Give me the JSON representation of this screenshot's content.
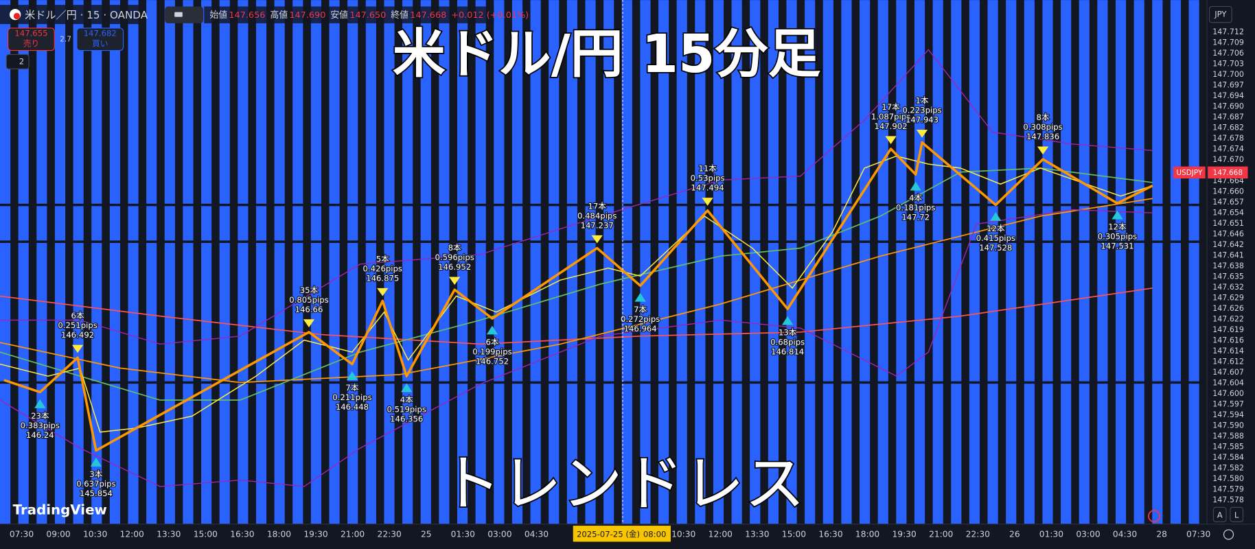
{
  "toolbar": {
    "symbol": "米ドル／円 · 15 · OANDA",
    "ohlc": [
      {
        "label": "始値",
        "value": "147.656"
      },
      {
        "label": "高値",
        "value": "147.690"
      },
      {
        "label": "安値",
        "value": "147.650"
      },
      {
        "label": "終値",
        "value": "147.668"
      }
    ],
    "change": "+0.012 (+0.01%)"
  },
  "trade": {
    "sell_price": "147.655",
    "sell_label": "売り",
    "spread": "2.7",
    "buy_price": "147.682",
    "buy_label": "買い"
  },
  "indicator_count": "2",
  "overlay_title": "米ドル/円 15分足",
  "overlay_subtitle": "トレンドレス",
  "pivots": [
    {
      "bars": "23本",
      "pips": "0.383pips",
      "price": "146.24"
    },
    {
      "bars": "6本",
      "pips": "0.251pips",
      "price": "146.492"
    },
    {
      "bars": "3本",
      "pips": "0.637pips",
      "price": "145.854"
    },
    {
      "bars": "35本",
      "pips": "0.805pips",
      "price": "146.66"
    },
    {
      "bars": "7本",
      "pips": "0.211pips",
      "price": "146.448"
    },
    {
      "bars": "5本",
      "pips": "0.426pips",
      "price": "146.875"
    },
    {
      "bars": "4本",
      "pips": "0.519pips",
      "price": "146.356"
    },
    {
      "bars": "8本",
      "pips": "0.596pips",
      "price": "146.952"
    },
    {
      "bars": "6本",
      "pips": "0.199pips",
      "price": "146.752"
    },
    {
      "bars": "17本",
      "pips": "0.484pips",
      "price": "147.237"
    },
    {
      "bars": "7本",
      "pips": "0.272pips",
      "price": "146.964"
    },
    {
      "bars": "11本",
      "pips": "0.53pips",
      "price": "147.494"
    },
    {
      "bars": "13本",
      "pips": "0.68pips",
      "price": "146.814"
    },
    {
      "bars": "17本",
      "pips": "1.087pips",
      "price": "147.902"
    },
    {
      "bars": "4本",
      "pips": "0.181pips",
      "price": "147.72"
    },
    {
      "bars": "1本",
      "pips": "0.223pips",
      "price": "147.943"
    },
    {
      "bars": "12本",
      "pips": "0.415pips",
      "price": "147.528"
    },
    {
      "bars": "8本",
      "pips": "0.308pips",
      "price": "147.836"
    },
    {
      "bars": "12本",
      "pips": "0.305pips",
      "price": "147.531"
    }
  ],
  "price_axis": {
    "currency": "JPY",
    "symbol_tag": "USDJPY",
    "last_price": "147.668",
    "labels": [
      "147.712",
      "147.709",
      "147.706",
      "147.703",
      "147.700",
      "147.697",
      "147.694",
      "147.690",
      "147.687",
      "147.682",
      "147.678",
      "147.674",
      "147.670",
      "147.668",
      "147.664",
      "147.660",
      "147.657",
      "147.654",
      "147.651",
      "147.646",
      "147.642",
      "147.641",
      "147.638",
      "147.635",
      "147.632",
      "147.629",
      "147.626",
      "147.622",
      "147.619",
      "147.616",
      "147.614",
      "147.612",
      "147.607",
      "147.604",
      "147.600",
      "147.597",
      "147.594",
      "147.590",
      "147.588",
      "147.585",
      "147.584",
      "147.582",
      "147.580",
      "147.579",
      "147.578"
    ]
  },
  "time_axis": {
    "labels": [
      "07:30",
      "09:00",
      "10:30",
      "12:00",
      "13:30",
      "15:00",
      "16:30",
      "18:00",
      "19:30",
      "21:00",
      "22:30",
      "25",
      "01:30",
      "03:00",
      "04:30",
      "10:30",
      "12:00",
      "13:30",
      "15:00",
      "16:30",
      "18:00",
      "19:30",
      "21:00",
      "22:30",
      "26",
      "01:30",
      "03:00",
      "04:30",
      "28",
      "07:30"
    ],
    "cursor_date": "2025-07-25 (金)",
    "cursor_time": "08:00"
  },
  "brand": "TradingView",
  "scale_buttons": [
    "A",
    "L"
  ]
}
